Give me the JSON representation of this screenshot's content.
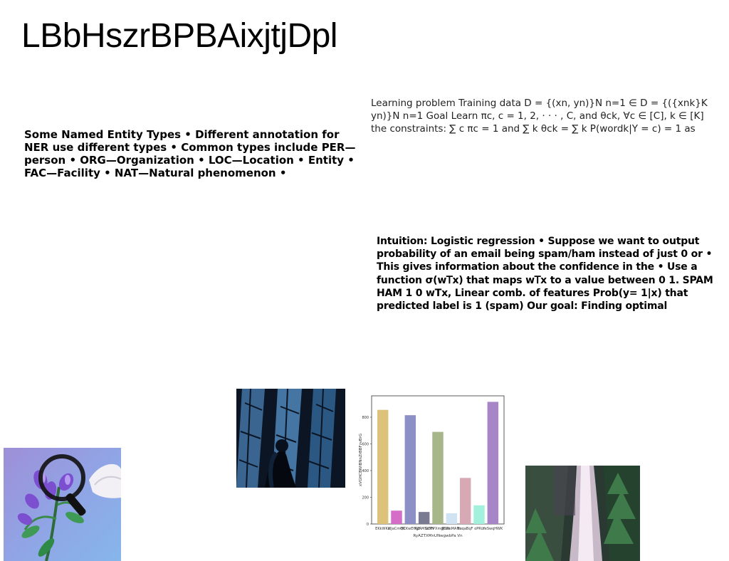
{
  "title": "LBbHszrBPBAixjtjDpl",
  "blocks": {
    "ner": "Some Named Entity Types • Different annotation for NER use different types • Common types include PER—person • ORG—Organization • LOC—Location • Entity • FAC—Facility • NAT—Natural phenomenon •",
    "learning": "Learning problem Training data D = {(xn, yn)}N n=1 ∈ D = {({xnk}K yn)}N n=1 Goal Learn πc, c = 1, 2, · · · , C, and θck, ∀c ∈ [C], k ∈ [K] the constraints: ∑ c πc = 1 and ∑ k θck = ∑ k P(wordk|Y = c) = 1 as",
    "logistic": "Intuition: Logistic regression • Suppose we want to output probability of an email being spam/ham instead of just 0 or • This gives information about the confidence in the • Use a function σ(w𝖳x) that maps w𝖳x to a value between 0 1. SPAM HAM 1 0 wTx, Linear comb. of features Prob(y= 1|x) that predicted label is 1 (spam) Our goal: Finding optimal"
  },
  "images": {
    "flower": "flower-magnifier-image",
    "glass": "stained-glass-figure-image",
    "waterfall": "waterfall-forest-image"
  },
  "chart_data": {
    "type": "bar",
    "categories": [
      "EKkWKX",
      "dlJaCmQK",
      "HCKwEfhJE",
      "RyAMSdYh",
      "GOFPXmdOKk",
      "JJtUmMANn",
      "FuqaBqF",
      "oPRiz",
      "YeSwqHWK"
    ],
    "values": [
      855,
      100,
      815,
      90,
      690,
      80,
      345,
      140,
      915
    ],
    "colors": [
      "#dcc27a",
      "#d46cc8",
      "#8d90c6",
      "#7a7a92",
      "#a8b78a",
      "#cfe3f2",
      "#d7a9b4",
      "#a3f0dc",
      "#a786c8"
    ],
    "xlabel": "RyAZTXMnUNwgwbPa Vn",
    "ylabel": "xVGHCBWlBNnZrBBFzvBrG",
    "yticks": [
      0,
      200,
      400,
      600,
      800
    ],
    "ylim": [
      0,
      960
    ],
    "grid": false
  }
}
